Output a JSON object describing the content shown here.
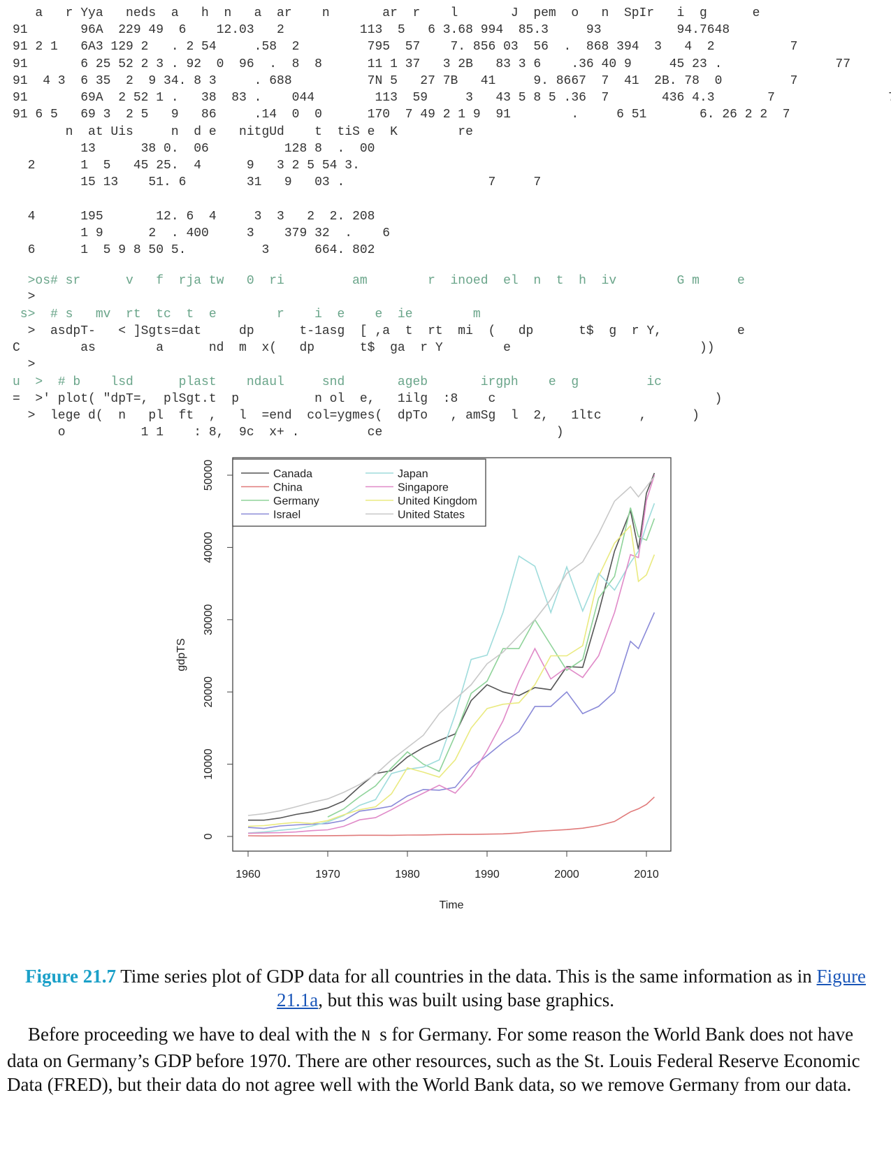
{
  "code": {
    "lines": [
      "   a   r Yya   neds  a   h  n   a  ar    n       ar  r    l       J  pem  o   n  SpIr   i  g      e",
      "91       96A  229 49  6    12.03   2          113  5   6 3.68 994  85.3     93          94.7648",
      "91 2 1   6A3 129 2   . 2 54     .58  2         795  57    7. 856 03  56  .  868 394  3   4  2          7",
      "91       6 25 52 2 3 . 92  0  96  .  8  8      11 1 37   3 2B   83 3 6    .36 40 9     45 23 .               77",
      "91  4 3  6 35  2  9 34. 8 3     . 688          7N 5   27 7B   41     9. 8667  7  41  2B. 78  0         7",
      "91       69A  2 52 1 .   38  83 .    044        113  59     3   43 5 8 5 .36  7       436 4.3       7               77",
      "91 6 5   69 3  2 5   9   86     .14  0  0      170  7 49 2 1 9  91        .     6 51       6. 26 2 2  7",
      "       n  at Uis     n  d e   nitgUd    t  tiS e  K        re",
      "         13      38 0.  06          128 8  .  00",
      "  2      1  5   45 25.  4      9   3 2 5 54 3.",
      "         15 13    51. 6        31   9   03 .                   7     7",
      "",
      "  4      195       12. 6  4     3  3   2  2. 208",
      "         1 9      2  . 400     3    379 32  .    6",
      "  6      1  5 9 8 50 5.          3      664. 802",
      "",
      "  >os# sr      v   f  rja tw   0  ri         am        r  inoed  el  n  t  h  iv        G m     e",
      "  >",
      " s>  # s   mv  rt  tc  t  e        r    i  e    e  ie        m",
      "  >  asdpT-   < ]Sgts=dat     dp      t-1asg  [ ,a  t  rt  mi  (   dp      t$  g  r Y,          e                              )",
      "C        as        a      nd  m  x(   dp      t$  ga  r Y        e                         ))",
      "  >",
      "u  >  # b    lsd      plast    ndaul     snd       ageb       irgph    e  g         ic",
      "=  >' plot( \"dpT=,  plSgt.t  p          n ol  e,   1ilg  :8    c                             )",
      "  >  lege d(  n   pl  ft  ,   l  =end  col=ygmes(  dpTo   , amSg  l  2,   1ltc     ,      )",
      "      o          1 1    : 8,  9c  x+ .         ce                       )"
    ]
  },
  "chart_data": {
    "type": "line",
    "xlabel": "Time",
    "ylabel": "gdpTS",
    "x": [
      1960,
      1962,
      1964,
      1966,
      1968,
      1970,
      1972,
      1974,
      1976,
      1978,
      1980,
      1982,
      1984,
      1986,
      1988,
      1990,
      1992,
      1994,
      1996,
      1998,
      2000,
      2002,
      2004,
      2006,
      2008,
      2009,
      2010,
      2011
    ],
    "xlim": [
      1958.07,
      2013.07
    ],
    "xticks": [
      1960,
      1970,
      1980,
      1990,
      2000,
      2010
    ],
    "ylim": [
      -2031,
      52418
    ],
    "yticks": [
      0,
      10000,
      20000,
      30000,
      40000,
      50000
    ],
    "legend": "top-left",
    "series": [
      {
        "name": "Canada",
        "color": "#555555",
        "values": [
          2250,
          2250,
          2550,
          3050,
          3400,
          3950,
          4900,
          6900,
          8700,
          9100,
          11000,
          12300,
          13300,
          14200,
          18800,
          21000,
          20000,
          19500,
          20600,
          20300,
          23500,
          23400,
          31000,
          39500,
          45100,
          39700,
          47500,
          50300
        ]
      },
      {
        "name": "China",
        "color": "#e07a7a",
        "values": [
          92,
          70,
          85,
          100,
          90,
          110,
          130,
          160,
          165,
          155,
          195,
          200,
          250,
          280,
          280,
          315,
          360,
          470,
          710,
          820,
          950,
          1140,
          1500,
          2080,
          3400,
          3830,
          4430,
          5450
        ]
      },
      {
        "name": "Germany",
        "color": "#8fd39a",
        "values": [
          null,
          null,
          null,
          null,
          null,
          2700,
          3800,
          5500,
          7000,
          9500,
          11700,
          10000,
          9000,
          14000,
          19800,
          21500,
          26000,
          26000,
          30000,
          26500,
          23000,
          24500,
          33000,
          36000,
          45500,
          41500,
          41000,
          44000
        ]
      },
      {
        "name": "Israel",
        "color": "#8a8ad8",
        "values": [
          1250,
          1100,
          1450,
          1600,
          1700,
          1800,
          2200,
          3500,
          3800,
          4200,
          5600,
          6500,
          6400,
          6800,
          9500,
          11200,
          13000,
          14500,
          18000,
          18000,
          20000,
          17000,
          18000,
          20000,
          27000,
          26000,
          28500,
          31000
        ]
      },
      {
        "name": "Japan",
        "color": "#9fdcdc",
        "values": [
          480,
          620,
          850,
          1050,
          1450,
          2000,
          2900,
          4300,
          5100,
          8700,
          9300,
          9600,
          10600,
          16900,
          24500,
          25100,
          31000,
          38800,
          37400,
          31000,
          37300,
          31200,
          36400,
          34100,
          37900,
          39500,
          43100,
          46100
        ]
      },
      {
        "name": "Singapore",
        "color": "#e08ac8",
        "values": [
          430,
          490,
          520,
          620,
          800,
          920,
          1400,
          2300,
          2600,
          3700,
          4900,
          6000,
          7100,
          6000,
          8400,
          11900,
          16000,
          21500,
          26000,
          21800,
          23400,
          22000,
          25000,
          31000,
          39000,
          38600,
          46500,
          50000
        ]
      },
      {
        "name": "United Kingdom",
        "color": "#eaea80",
        "values": [
          1400,
          1500,
          1750,
          1950,
          1800,
          2200,
          3000,
          3700,
          4100,
          5900,
          9500,
          8900,
          8200,
          10600,
          15000,
          17700,
          18300,
          18500,
          21000,
          25000,
          25000,
          26400,
          36000,
          40600,
          43000,
          35300,
          36200,
          39000
        ]
      },
      {
        "name": "United States",
        "color": "#c8c8c8",
        "values": [
          2900,
          3150,
          3550,
          4100,
          4700,
          5200,
          6100,
          7200,
          8600,
          10600,
          12300,
          14000,
          17000,
          19000,
          21000,
          23900,
          25500,
          27800,
          30000,
          32800,
          36400,
          38000,
          41900,
          46400,
          48400,
          47000,
          48400,
          49800
        ]
      }
    ]
  },
  "caption": {
    "label": "Figure 21.7",
    "text1": " Time series plot of GDP data for all countries in the data. This is the same information as in ",
    "link": "Figure 21.1a",
    "text2": ", but this was built using base graphics."
  },
  "paragraph": {
    "text1": "Before proceeding we have to deal with the ",
    "code": "N  ",
    "text2": "s for Germany. For some reason the World Bank does not have data on Germany’s GDP before 1970. There are other resources, such as the St. Louis Federal Reserve Economic Data (FRED), but their data do not agree well with the World Bank data, so we remove Germany from our data."
  }
}
